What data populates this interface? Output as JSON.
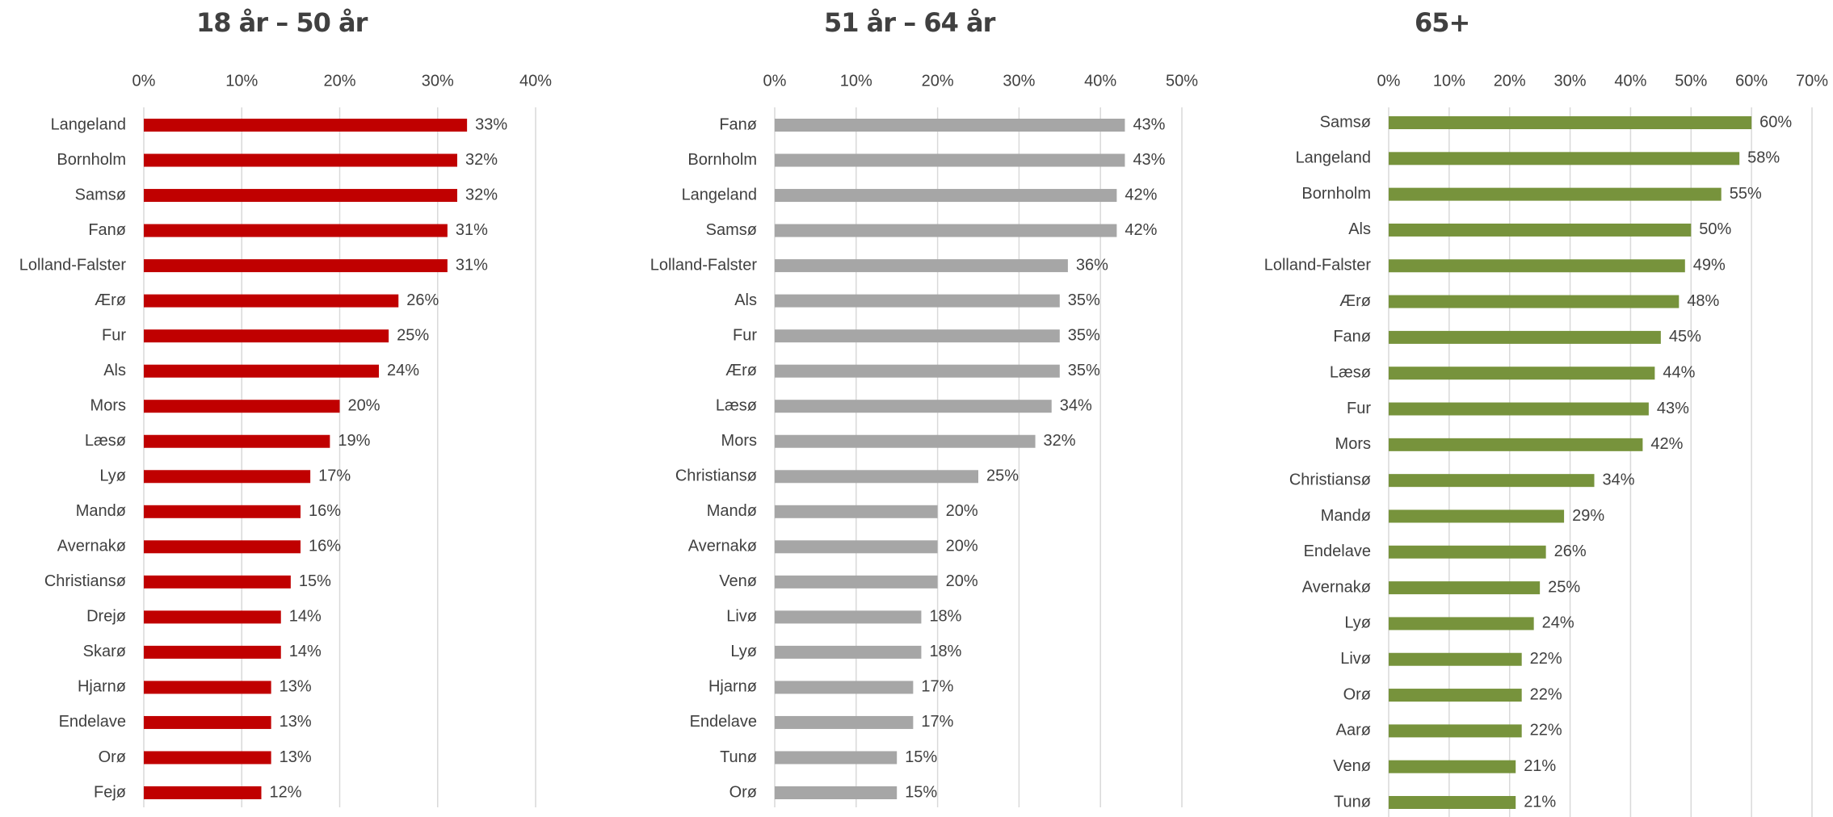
{
  "chart_data": [
    {
      "type": "bar",
      "orientation": "horizontal",
      "title": "18 år – 50 år",
      "categories": [
        "Langeland",
        "Bornholm",
        "Samsø",
        "Fanø",
        "Lolland-Falster",
        "Ærø",
        "Fur",
        "Als",
        "Mors",
        "Læsø",
        "Lyø",
        "Mandø",
        "Avernakø",
        "Christiansø",
        "Drejø",
        "Skarø",
        "Hjarnø",
        "Endelave",
        "Orø",
        "Fejø"
      ],
      "values": [
        33,
        32,
        32,
        31,
        31,
        26,
        25,
        24,
        20,
        19,
        17,
        16,
        16,
        15,
        14,
        14,
        13,
        13,
        13,
        12
      ],
      "value_labels": [
        "33%",
        "32%",
        "32%",
        "31%",
        "31%",
        "26%",
        "25%",
        "24%",
        "20%",
        "19%",
        "17%",
        "16%",
        "16%",
        "15%",
        "14%",
        "14%",
        "13%",
        "13%",
        "13%",
        "12%"
      ],
      "color": "#c00000",
      "xlim": [
        0,
        40
      ],
      "xticks": [
        {
          "value": 0,
          "label": "0%"
        },
        {
          "value": 10,
          "label": "10%"
        },
        {
          "value": 20,
          "label": "20%"
        },
        {
          "value": 30,
          "label": "30%"
        },
        {
          "value": 40,
          "label": "40%"
        }
      ],
      "grid": true
    },
    {
      "type": "bar",
      "orientation": "horizontal",
      "title": "51 år – 64 år",
      "categories": [
        "Fanø",
        "Bornholm",
        "Langeland",
        "Samsø",
        "Lolland-Falster",
        "Als",
        "Fur",
        "Ærø",
        "Læsø",
        "Mors",
        "Christiansø",
        "Mandø",
        "Avernakø",
        "Venø",
        "Livø",
        "Lyø",
        "Hjarnø",
        "Endelave",
        "Tunø",
        "Orø"
      ],
      "values": [
        43,
        43,
        42,
        42,
        36,
        35,
        35,
        35,
        34,
        32,
        25,
        20,
        20,
        20,
        18,
        18,
        17,
        17,
        15,
        15
      ],
      "value_labels": [
        "43%",
        "43%",
        "42%",
        "42%",
        "36%",
        "35%",
        "35%",
        "35%",
        "34%",
        "32%",
        "25%",
        "20%",
        "20%",
        "20%",
        "18%",
        "18%",
        "17%",
        "17%",
        "15%",
        "15%"
      ],
      "color": "#a6a6a6",
      "xlim": [
        0,
        50
      ],
      "xticks": [
        {
          "value": 0,
          "label": "0%"
        },
        {
          "value": 10,
          "label": "10%"
        },
        {
          "value": 20,
          "label": "20%"
        },
        {
          "value": 30,
          "label": "30%"
        },
        {
          "value": 40,
          "label": "40%"
        },
        {
          "value": 50,
          "label": "50%"
        }
      ],
      "grid": true
    },
    {
      "type": "bar",
      "orientation": "horizontal",
      "title": "65+",
      "categories": [
        "Samsø",
        "Langeland",
        "Bornholm",
        "Als",
        "Lolland-Falster",
        "Ærø",
        "Fanø",
        "Læsø",
        "Fur",
        "Mors",
        "Christiansø",
        "Mandø",
        "Endelave",
        "Avernakø",
        "Lyø",
        "Livø",
        "Orø",
        "Aarø",
        "Venø",
        "Tunø"
      ],
      "values": [
        60,
        58,
        55,
        50,
        49,
        48,
        45,
        44,
        43,
        42,
        34,
        29,
        26,
        25,
        24,
        22,
        22,
        22,
        21,
        21
      ],
      "value_labels": [
        "60%",
        "58%",
        "55%",
        "50%",
        "49%",
        "48%",
        "45%",
        "44%",
        "43%",
        "42%",
        "34%",
        "29%",
        "26%",
        "25%",
        "24%",
        "22%",
        "22%",
        "22%",
        "21%",
        "21%"
      ],
      "color": "#77933c",
      "xlim": [
        0,
        70
      ],
      "xticks": [
        {
          "value": 0,
          "label": "0%"
        },
        {
          "value": 10,
          "label": "10%"
        },
        {
          "value": 20,
          "label": "20%"
        },
        {
          "value": 30,
          "label": "30%"
        },
        {
          "value": 40,
          "label": "40%"
        },
        {
          "value": 50,
          "label": "50%"
        },
        {
          "value": 60,
          "label": "60%"
        },
        {
          "value": 70,
          "label": "70%"
        }
      ],
      "grid": true
    }
  ]
}
